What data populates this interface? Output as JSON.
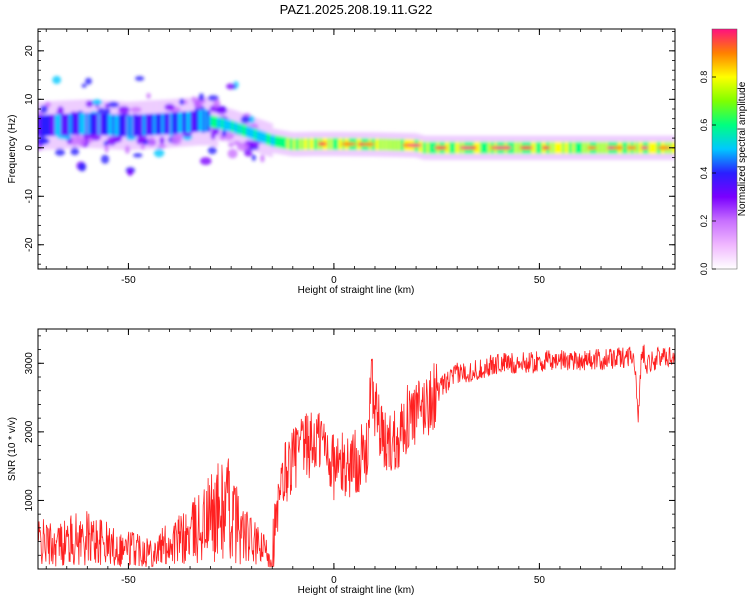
{
  "title": "PAZ1.2025.208.19.11.G22",
  "colors": {
    "snr_line": "#ff2020",
    "axis": "#000000",
    "background": "#ffffff",
    "colormap": [
      "#ffffff",
      "#f0b8ff",
      "#c870ff",
      "#7a00ff",
      "#2a1fff",
      "#00c8ff",
      "#00ff80",
      "#ffff00",
      "#ff8000",
      "#ff0050",
      "#ff1080"
    ]
  },
  "chart_data": [
    {
      "type": "heatmap",
      "name": "spectrogram",
      "xlabel": "Height of straight line (km)",
      "ylabel": "Frequency (Hz)",
      "xlim": [
        -72,
        83
      ],
      "ylim": [
        -25,
        24.5
      ],
      "x_ticks": [
        -50,
        0,
        50
      ],
      "y_ticks": [
        -20,
        -10,
        0,
        10,
        20
      ],
      "grid": false,
      "ridge": {
        "x": [
          -72,
          -60,
          -50,
          -40,
          -33,
          -30,
          -25,
          -20,
          -15,
          -10,
          -5,
          0,
          10,
          20,
          22,
          30,
          40,
          50,
          60,
          70,
          75,
          83
        ],
        "y": [
          4.5,
          5,
          4.5,
          5,
          5.5,
          5.5,
          4.5,
          3,
          1.5,
          0.7,
          0.8,
          0.8,
          0.7,
          0.5,
          0,
          0,
          0,
          0,
          0,
          0,
          0,
          0
        ]
      },
      "colorbar": {
        "label": "Normalized spectral amplitude",
        "range": [
          0,
          1
        ],
        "ticks": [
          "0.0",
          "0.2",
          "0.4",
          "0.6",
          "0.8"
        ]
      }
    },
    {
      "type": "line",
      "name": "snr",
      "xlabel": "Height of straight line (km)",
      "ylabel": "SNR (10 * v/v)",
      "xlim": [
        -72,
        83
      ],
      "ylim": [
        0,
        3500
      ],
      "x_ticks": [
        -50,
        0,
        50
      ],
      "y_ticks": [
        1000,
        2000,
        3000
      ],
      "grid": false,
      "series": [
        {
          "color": "#ff2020",
          "x": [
            -72,
            -68,
            -64,
            -60,
            -56,
            -52,
            -48,
            -44,
            -40,
            -36,
            -32,
            -29,
            -26,
            -22,
            -18,
            -16,
            -15,
            -12,
            -9,
            -6,
            -3,
            0,
            3,
            6,
            8,
            9,
            12,
            15,
            18,
            21,
            24,
            27,
            30,
            35,
            40,
            45,
            50,
            55,
            60,
            65,
            70,
            73,
            74,
            75,
            76,
            78,
            80,
            83
          ],
          "y": [
            400,
            350,
            420,
            450,
            380,
            300,
            320,
            250,
            380,
            450,
            650,
            800,
            900,
            500,
            300,
            250,
            300,
            1400,
            1700,
            1800,
            1900,
            1500,
            1500,
            1600,
            1650,
            2700,
            1800,
            1900,
            2200,
            2300,
            2500,
            2700,
            2850,
            2900,
            3000,
            3000,
            3020,
            3050,
            3050,
            3050,
            3080,
            3150,
            2200,
            3250,
            3000,
            3050,
            3100,
            3100
          ]
        }
      ]
    }
  ]
}
